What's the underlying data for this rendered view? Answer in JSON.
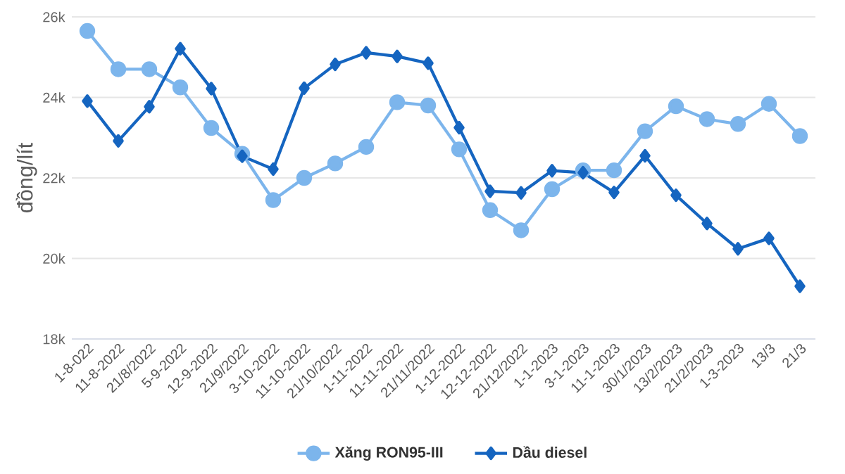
{
  "chart_data": {
    "type": "line",
    "ylabel": "đồng/lít",
    "categories": [
      "1-8-022",
      "11-8-2022",
      "21/8/2022",
      "5-9-2022",
      "12-9-2022",
      "21/9/2022",
      "3-10-2022",
      "11-10-2022",
      "21/10/2022",
      "1-11-2022",
      "11-11-2022",
      "21/11/2022",
      "1-12-2022",
      "12-12-2022",
      "21/12/2022",
      "1-1-2023",
      "3-1-2023",
      "11-1-2023",
      "30/1/2023",
      "13/2/2023",
      "21/2/2023",
      "1-3-2023",
      "13/3",
      "21/3"
    ],
    "series": [
      {
        "name": "Xăng RON95-III",
        "color": "#7cb5ec",
        "marker": "circle",
        "values": [
          25650,
          24700,
          24700,
          24250,
          23240,
          22600,
          21450,
          22000,
          22360,
          22770,
          23880,
          23800,
          22710,
          21200,
          20700,
          21720,
          22190,
          22190,
          23160,
          23780,
          23460,
          23340,
          23840,
          23040
        ]
      },
      {
        "name": "Dầu diesel",
        "color": "#1565c0",
        "marker": "diamond",
        "values": [
          23910,
          22920,
          23770,
          25210,
          24220,
          22540,
          22220,
          24230,
          24820,
          25110,
          25020,
          24850,
          23250,
          21670,
          21630,
          22180,
          22130,
          21640,
          22550,
          21570,
          20870,
          20240,
          20500,
          19310
        ]
      }
    ],
    "ylim": [
      18000,
      26000
    ],
    "yticks": [
      {
        "value": 18000,
        "label": "18k"
      },
      {
        "value": 20000,
        "label": "20k"
      },
      {
        "value": 22000,
        "label": "22k"
      },
      {
        "value": 24000,
        "label": "24k"
      },
      {
        "value": 26000,
        "label": "26k"
      }
    ],
    "grid": "y",
    "legend": "bottom",
    "line_style": "solid"
  }
}
